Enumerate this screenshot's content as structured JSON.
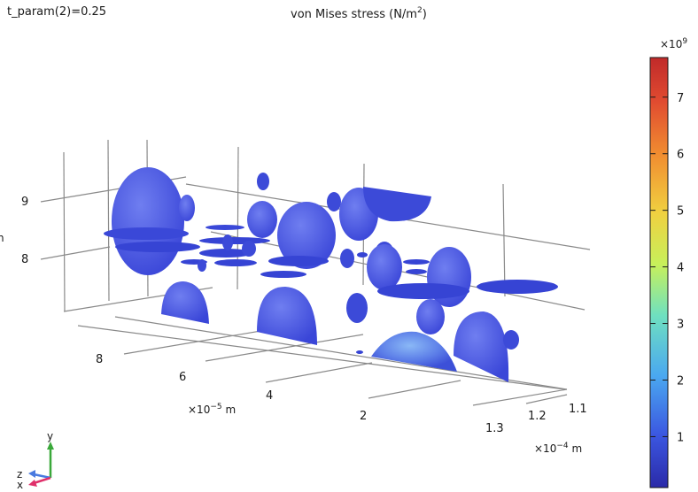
{
  "header": {
    "param_text": "t_param(2)=0.25",
    "title_main": "von Mises stress (N/m",
    "title_sup": "2",
    "title_end": ")"
  },
  "chart_data": {
    "type": "3d-slice-plot",
    "title": "von Mises stress (N/m²)",
    "parameter": "t_param(2)=0.25",
    "axes": {
      "x": {
        "ticks": [
          "1.1",
          "1.2",
          "1.3"
        ],
        "multiplier": "×10",
        "exponent": "−4",
        "unit": "m"
      },
      "y": {
        "ticks": [
          "8",
          "6",
          "4",
          "2"
        ],
        "multiplier": "×10",
        "exponent": "−5",
        "unit": "m"
      },
      "z": {
        "ticks": [
          "9",
          "8"
        ],
        "label_fragment": "n"
      }
    },
    "colorbar": {
      "multiplier": "×10",
      "exponent": "9",
      "ticks": [
        1,
        2,
        3,
        4,
        5,
        6,
        7
      ],
      "range": [
        0.1,
        7.7
      ],
      "colors": [
        "#2a2aa8",
        "#3b56e0",
        "#4aa8f0",
        "#6fe0c0",
        "#c8f05a",
        "#f0d040",
        "#f08a30",
        "#e04a30",
        "#c02a2a"
      ]
    },
    "triad": {
      "labels": [
        "y",
        "z",
        "x"
      ]
    }
  }
}
